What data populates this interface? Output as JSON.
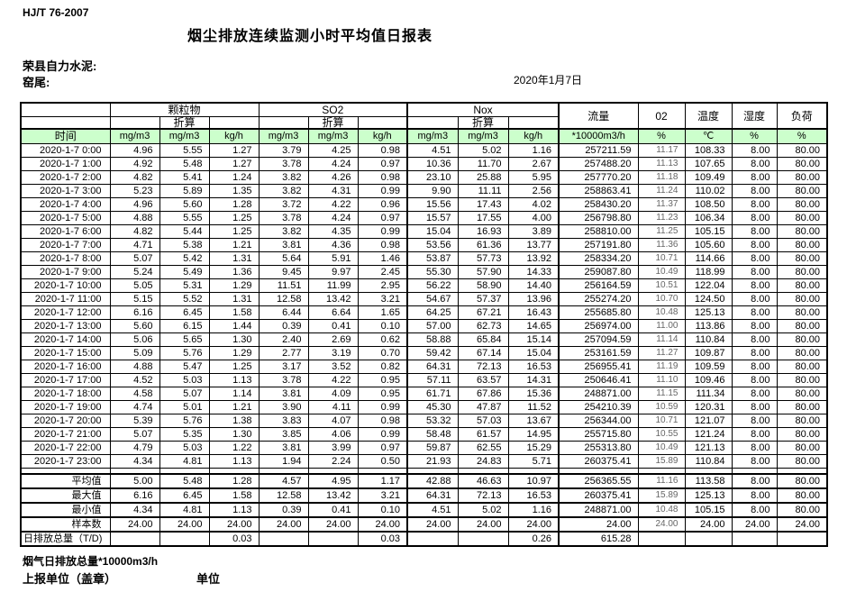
{
  "meta": {
    "standard": "HJ/T  76-2007",
    "title": "烟尘排放连续监测小时平均值日报表",
    "company": "荣县自力水泥:",
    "location": "窑尾:",
    "date": "2020年1月7日"
  },
  "table": {
    "time_header": "时间",
    "col_groups": {
      "pm": "颗粒物",
      "so2": "SO2",
      "nox": "Nox",
      "converted": "折算",
      "flow": "流量",
      "o2": "02",
      "temp": "温度",
      "humidity": "湿度",
      "load": "负荷"
    },
    "units": [
      "mg/m3",
      "mg/m3",
      "kg/h",
      "mg/m3",
      "mg/m3",
      "kg/h",
      "mg/m3",
      "mg/m3",
      "kg/h",
      "*10000m3/h",
      "%",
      "℃",
      "%",
      "%"
    ],
    "rows": [
      {
        "time": "2020-1-7 0:00",
        "values": [
          "4.96",
          "5.55",
          "1.27",
          "3.79",
          "4.25",
          "0.98",
          "4.51",
          "5.02",
          "1.16",
          "257211.59",
          "11.17",
          "108.33",
          "8.00",
          "80.00"
        ]
      },
      {
        "time": "2020-1-7 1:00",
        "values": [
          "4.92",
          "5.48",
          "1.27",
          "3.78",
          "4.24",
          "0.97",
          "10.36",
          "11.70",
          "2.67",
          "257488.20",
          "11.13",
          "107.65",
          "8.00",
          "80.00"
        ]
      },
      {
        "time": "2020-1-7 2:00",
        "values": [
          "4.82",
          "5.41",
          "1.24",
          "3.82",
          "4.26",
          "0.98",
          "23.10",
          "25.88",
          "5.95",
          "257770.20",
          "11.18",
          "109.49",
          "8.00",
          "80.00"
        ]
      },
      {
        "time": "2020-1-7 3:00",
        "values": [
          "5.23",
          "5.89",
          "1.35",
          "3.82",
          "4.31",
          "0.99",
          "9.90",
          "11.11",
          "2.56",
          "258863.41",
          "11.24",
          "110.02",
          "8.00",
          "80.00"
        ]
      },
      {
        "time": "2020-1-7 4:00",
        "values": [
          "4.96",
          "5.60",
          "1.28",
          "3.72",
          "4.22",
          "0.96",
          "15.56",
          "17.43",
          "4.02",
          "258430.20",
          "11.37",
          "108.50",
          "8.00",
          "80.00"
        ]
      },
      {
        "time": "2020-1-7 5:00",
        "values": [
          "4.88",
          "5.55",
          "1.25",
          "3.78",
          "4.24",
          "0.97",
          "15.57",
          "17.55",
          "4.00",
          "256798.80",
          "11.23",
          "106.34",
          "8.00",
          "80.00"
        ]
      },
      {
        "time": "2020-1-7 6:00",
        "values": [
          "4.82",
          "5.44",
          "1.25",
          "3.82",
          "4.35",
          "0.99",
          "15.04",
          "16.93",
          "3.89",
          "258810.00",
          "11.25",
          "105.15",
          "8.00",
          "80.00"
        ]
      },
      {
        "time": "2020-1-7 7:00",
        "values": [
          "4.71",
          "5.38",
          "1.21",
          "3.81",
          "4.36",
          "0.98",
          "53.56",
          "61.36",
          "13.77",
          "257191.80",
          "11.36",
          "105.60",
          "8.00",
          "80.00"
        ]
      },
      {
        "time": "2020-1-7 8:00",
        "values": [
          "5.07",
          "5.42",
          "1.31",
          "5.64",
          "5.91",
          "1.46",
          "53.87",
          "57.73",
          "13.92",
          "258334.20",
          "10.71",
          "114.66",
          "8.00",
          "80.00"
        ]
      },
      {
        "time": "2020-1-7 9:00",
        "values": [
          "5.24",
          "5.49",
          "1.36",
          "9.45",
          "9.97",
          "2.45",
          "55.30",
          "57.90",
          "14.33",
          "259087.80",
          "10.49",
          "118.99",
          "8.00",
          "80.00"
        ]
      },
      {
        "time": "2020-1-7 10:00",
        "values": [
          "5.05",
          "5.31",
          "1.29",
          "11.51",
          "11.99",
          "2.95",
          "56.22",
          "58.90",
          "14.40",
          "256164.59",
          "10.51",
          "122.04",
          "8.00",
          "80.00"
        ]
      },
      {
        "time": "2020-1-7 11:00",
        "values": [
          "5.15",
          "5.52",
          "1.31",
          "12.58",
          "13.42",
          "3.21",
          "54.67",
          "57.37",
          "13.96",
          "255274.20",
          "10.70",
          "124.50",
          "8.00",
          "80.00"
        ]
      },
      {
        "time": "2020-1-7 12:00",
        "values": [
          "6.16",
          "6.45",
          "1.58",
          "6.44",
          "6.64",
          "1.65",
          "64.25",
          "67.21",
          "16.43",
          "255685.80",
          "10.48",
          "125.13",
          "8.00",
          "80.00"
        ]
      },
      {
        "time": "2020-1-7 13:00",
        "values": [
          "5.60",
          "6.15",
          "1.44",
          "0.39",
          "0.41",
          "0.10",
          "57.00",
          "62.73",
          "14.65",
          "256974.00",
          "11.00",
          "113.86",
          "8.00",
          "80.00"
        ]
      },
      {
        "time": "2020-1-7 14:00",
        "values": [
          "5.06",
          "5.65",
          "1.30",
          "2.40",
          "2.69",
          "0.62",
          "58.88",
          "65.84",
          "15.14",
          "257094.59",
          "11.14",
          "110.84",
          "8.00",
          "80.00"
        ]
      },
      {
        "time": "2020-1-7 15:00",
        "values": [
          "5.09",
          "5.76",
          "1.29",
          "2.77",
          "3.19",
          "0.70",
          "59.42",
          "67.14",
          "15.04",
          "253161.59",
          "11.27",
          "109.87",
          "8.00",
          "80.00"
        ]
      },
      {
        "time": "2020-1-7 16:00",
        "values": [
          "4.88",
          "5.47",
          "1.25",
          "3.17",
          "3.52",
          "0.82",
          "64.31",
          "72.13",
          "16.53",
          "256955.41",
          "11.19",
          "109.59",
          "8.00",
          "80.00"
        ]
      },
      {
        "time": "2020-1-7 17:00",
        "values": [
          "4.52",
          "5.03",
          "1.13",
          "3.78",
          "4.22",
          "0.95",
          "57.11",
          "63.57",
          "14.31",
          "250646.41",
          "11.10",
          "109.46",
          "8.00",
          "80.00"
        ]
      },
      {
        "time": "2020-1-7 18:00",
        "values": [
          "4.58",
          "5.07",
          "1.14",
          "3.81",
          "4.09",
          "0.95",
          "61.71",
          "67.86",
          "15.36",
          "248871.00",
          "11.15",
          "111.34",
          "8.00",
          "80.00"
        ]
      },
      {
        "time": "2020-1-7 19:00",
        "values": [
          "4.74",
          "5.01",
          "1.21",
          "3.90",
          "4.11",
          "0.99",
          "45.30",
          "47.87",
          "11.52",
          "254210.39",
          "10.59",
          "120.31",
          "8.00",
          "80.00"
        ]
      },
      {
        "time": "2020-1-7 20:00",
        "values": [
          "5.39",
          "5.76",
          "1.38",
          "3.83",
          "4.07",
          "0.98",
          "53.32",
          "57.03",
          "13.67",
          "256344.00",
          "10.71",
          "121.07",
          "8.00",
          "80.00"
        ]
      },
      {
        "time": "2020-1-7 21:00",
        "values": [
          "5.07",
          "5.35",
          "1.30",
          "3.85",
          "4.06",
          "0.99",
          "58.48",
          "61.57",
          "14.95",
          "255715.80",
          "10.55",
          "121.24",
          "8.00",
          "80.00"
        ]
      },
      {
        "time": "2020-1-7 22:00",
        "values": [
          "4.79",
          "5.03",
          "1.22",
          "3.81",
          "3.99",
          "0.97",
          "59.87",
          "62.55",
          "15.29",
          "255313.80",
          "10.49",
          "121.13",
          "8.00",
          "80.00"
        ]
      },
      {
        "time": "2020-1-7 23:00",
        "values": [
          "4.34",
          "4.81",
          "1.13",
          "1.94",
          "2.24",
          "0.50",
          "21.93",
          "24.83",
          "5.71",
          "260375.41",
          "15.89",
          "110.84",
          "8.00",
          "80.00"
        ]
      }
    ],
    "summary": [
      {
        "label": "平均值",
        "values": [
          "5.00",
          "5.48",
          "1.28",
          "4.57",
          "4.95",
          "1.17",
          "42.88",
          "46.63",
          "10.97",
          "256365.55",
          "11.16",
          "113.58",
          "8.00",
          "80.00"
        ]
      },
      {
        "label": "最大值",
        "values": [
          "6.16",
          "6.45",
          "1.58",
          "12.58",
          "13.42",
          "3.21",
          "64.31",
          "72.13",
          "16.53",
          "260375.41",
          "15.89",
          "125.13",
          "8.00",
          "80.00"
        ]
      },
      {
        "label": "最小值",
        "values": [
          "4.34",
          "4.81",
          "1.13",
          "0.39",
          "0.41",
          "0.10",
          "4.51",
          "5.02",
          "1.16",
          "248871.00",
          "10.48",
          "105.15",
          "8.00",
          "80.00"
        ]
      },
      {
        "label": "样本数",
        "values": [
          "24.00",
          "24.00",
          "24.00",
          "24.00",
          "24.00",
          "24.00",
          "24.00",
          "24.00",
          "24.00",
          "24.00",
          "24.00",
          "24.00",
          "24.00",
          "24.00"
        ]
      },
      {
        "label": "日排放总量（T/D)",
        "values": [
          "",
          "",
          "0.03",
          "",
          "",
          "0.03",
          "",
          "",
          "0.26",
          "615.28",
          "",
          "",
          "",
          ""
        ]
      }
    ]
  },
  "footer": {
    "note": "烟气日排放总量*10000m3/h",
    "report_unit": "上报单位（盖章）",
    "unit": "单位"
  }
}
